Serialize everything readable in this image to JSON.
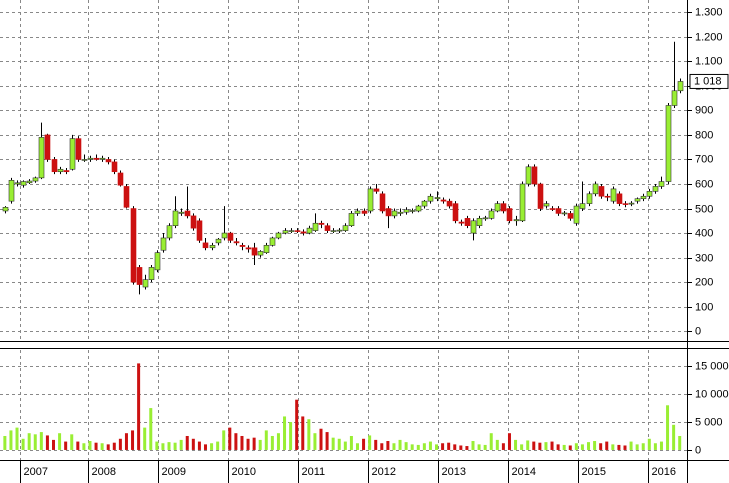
{
  "chart_data": [
    {
      "type": "candlestick",
      "open": [
        490,
        530,
        600,
        595,
        605,
        612,
        625,
        800,
        700,
        650,
        655,
        660,
        785,
        700,
        700,
        705,
        700,
        700,
        690,
        645,
        590,
        500,
        260,
        180,
        210,
        250,
        330,
        380,
        430,
        480,
        490,
        470,
        450,
        360,
        340,
        360,
        380,
        400,
        365,
        350,
        340,
        340,
        310,
        320,
        350,
        380,
        400,
        410,
        410,
        405,
        400,
        410,
        440,
        430,
        410,
        410,
        410,
        430,
        480,
        490,
        490,
        580,
        560,
        500,
        470,
        480,
        485,
        490,
        490,
        510,
        530,
        540,
        535,
        530,
        520,
        445,
        460,
        400,
        430,
        460,
        460,
        490,
        520,
        500,
        450,
        450,
        600,
        670,
        600,
        510,
        500,
        500,
        480,
        480,
        440,
        500,
        520,
        560,
        590,
        550,
        530,
        560,
        520,
        520,
        530,
        540,
        550,
        570,
        590,
        610,
        920,
        980
      ],
      "high": [
        510,
        625,
        615,
        615,
        620,
        630,
        850,
        805,
        710,
        670,
        665,
        800,
        795,
        720,
        715,
        720,
        715,
        710,
        700,
        655,
        600,
        510,
        270,
        230,
        270,
        330,
        400,
        440,
        550,
        500,
        590,
        480,
        460,
        380,
        360,
        380,
        510,
        405,
        380,
        360,
        350,
        360,
        330,
        360,
        385,
        405,
        420,
        420,
        420,
        415,
        430,
        480,
        450,
        440,
        420,
        420,
        440,
        490,
        500,
        500,
        590,
        600,
        570,
        510,
        500,
        500,
        505,
        500,
        515,
        535,
        560,
        570,
        545,
        540,
        530,
        455,
        470,
        460,
        470,
        470,
        500,
        530,
        530,
        510,
        470,
        610,
        680,
        680,
        605,
        530,
        510,
        510,
        490,
        490,
        520,
        610,
        570,
        610,
        600,
        560,
        590,
        570,
        530,
        530,
        545,
        560,
        580,
        600,
        630,
        930,
        1180,
        1030
      ],
      "low": [
        480,
        520,
        590,
        585,
        600,
        605,
        620,
        690,
        640,
        640,
        640,
        655,
        690,
        690,
        690,
        695,
        690,
        680,
        640,
        590,
        500,
        190,
        150,
        170,
        200,
        240,
        320,
        370,
        420,
        470,
        460,
        410,
        360,
        330,
        330,
        350,
        370,
        360,
        350,
        330,
        320,
        270,
        300,
        315,
        345,
        375,
        395,
        400,
        400,
        390,
        395,
        405,
        420,
        400,
        400,
        400,
        405,
        425,
        470,
        470,
        480,
        560,
        480,
        420,
        460,
        470,
        475,
        480,
        485,
        500,
        520,
        530,
        520,
        500,
        440,
        430,
        420,
        370,
        420,
        450,
        455,
        485,
        480,
        440,
        430,
        445,
        590,
        590,
        490,
        500,
        490,
        470,
        470,
        450,
        430,
        490,
        510,
        550,
        540,
        530,
        520,
        510,
        505,
        510,
        520,
        530,
        540,
        560,
        580,
        600,
        910,
        970
      ],
      "close": [
        505,
        615,
        605,
        610,
        612,
        625,
        790,
        700,
        650,
        660,
        650,
        785,
        700,
        700,
        705,
        700,
        705,
        690,
        650,
        595,
        505,
        200,
        190,
        210,
        260,
        320,
        380,
        430,
        490,
        485,
        470,
        420,
        370,
        340,
        350,
        375,
        400,
        370,
        360,
        345,
        335,
        310,
        325,
        350,
        380,
        400,
        410,
        410,
        408,
        400,
        420,
        440,
        435,
        410,
        410,
        412,
        430,
        480,
        490,
        480,
        580,
        570,
        490,
        470,
        490,
        485,
        495,
        492,
        510,
        530,
        550,
        545,
        530,
        510,
        450,
        440,
        430,
        450,
        460,
        462,
        490,
        520,
        490,
        450,
        455,
        600,
        670,
        600,
        500,
        520,
        498,
        480,
        482,
        460,
        510,
        520,
        560,
        600,
        550,
        548,
        580,
        520,
        518,
        522,
        540,
        550,
        570,
        590,
        610,
        920,
        980,
        1018
      ],
      "up_color": "#99ee33",
      "down_color": "#cc1111",
      "ylim": [
        -40,
        1350
      ],
      "yticks": [
        0,
        100,
        200,
        300,
        400,
        500,
        600,
        700,
        800,
        900,
        {
          "value": 1000,
          "label": "1.000"
        },
        {
          "value": 1100,
          "label": "1.100"
        },
        {
          "value": 1200,
          "label": "1.200"
        },
        {
          "value": 1300,
          "label": "1.300"
        }
      ],
      "xticks": [
        {
          "value": 2.5,
          "label": "2007"
        },
        {
          "value": 13.7,
          "label": "2008"
        },
        {
          "value": 25.2,
          "label": "2009"
        },
        {
          "value": 36.7,
          "label": "2010"
        },
        {
          "value": 48.2,
          "label": "2011"
        },
        {
          "value": 59.7,
          "label": "2012"
        },
        {
          "value": 71.2,
          "label": "2013"
        },
        {
          "value": 82.8,
          "label": "2014"
        },
        {
          "value": 94.3,
          "label": "2015"
        },
        {
          "value": 105.8,
          "label": "2016"
        }
      ],
      "grid": true,
      "last_value_label": "1 018"
    },
    {
      "type": "volume",
      "values": [
        2500,
        3500,
        4000,
        2000,
        3000,
        2800,
        3200,
        2600,
        1800,
        3000,
        1500,
        2800,
        1500,
        1200,
        1600,
        1300,
        1200,
        1000,
        1300,
        2000,
        3000,
        3500,
        15500,
        4000,
        7500,
        1500,
        1200,
        1400,
        1300,
        1800,
        2500,
        2000,
        1500,
        1000,
        1200,
        1500,
        3500,
        4000,
        3000,
        2500,
        2000,
        2200,
        1800,
        3500,
        2500,
        3000,
        6000,
        5000,
        9000,
        6000,
        5500,
        3000,
        3800,
        3200,
        2200,
        2000,
        1500,
        2500,
        1200,
        2000,
        2600,
        1800,
        1200,
        1600,
        1200,
        1800,
        1400,
        1000,
        900,
        1200,
        1500,
        1000,
        1200,
        1300,
        1000,
        800,
        700,
        1600,
        1000,
        900,
        3000,
        1800,
        1200,
        3000,
        1800,
        1000,
        1700,
        1500,
        1300,
        1400,
        1500,
        1000,
        900,
        800,
        1200,
        1000,
        1400,
        1600,
        1200,
        1500,
        1000,
        900,
        800,
        1500,
        1000,
        1200,
        2000,
        1200,
        1500,
        8000,
        4500,
        2500
      ],
      "ylim": [
        -1800,
        17900
      ],
      "yticks": [
        0,
        {
          "value": 5000,
          "label": "5 000"
        },
        {
          "value": 10000,
          "label": "10 000"
        },
        {
          "value": 15000,
          "label": "15 000"
        }
      ],
      "grid": true
    }
  ]
}
